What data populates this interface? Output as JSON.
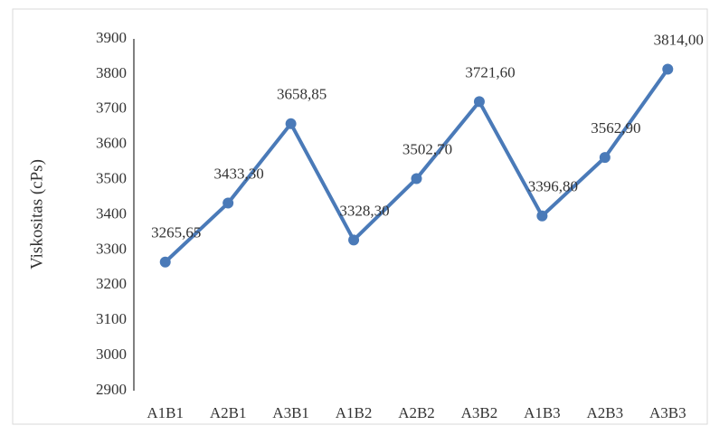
{
  "chart_data": {
    "type": "line",
    "ylabel": "Viskositas (cPs)",
    "categories": [
      "A1B1",
      "A2B1",
      "A3B1",
      "A1B2",
      "A2B2",
      "A3B2",
      "A1B3",
      "A2B3",
      "A3B3"
    ],
    "values": [
      3265.65,
      3433.3,
      3658.85,
      3328.3,
      3502.7,
      3721.6,
      3396.8,
      3562.9,
      3814
    ],
    "value_labels": [
      "3265,65",
      "3433,30",
      "3658,85",
      "3328,30",
      "3502,70",
      "3721,60",
      "3396,80",
      "3562,90",
      "3814,00"
    ],
    "color": "#4a7ab8",
    "ylim": [
      2900,
      3900
    ],
    "yticks": [
      2900,
      3000,
      3100,
      3200,
      3300,
      3400,
      3500,
      3600,
      3700,
      3800,
      3900
    ],
    "grid": false
  }
}
